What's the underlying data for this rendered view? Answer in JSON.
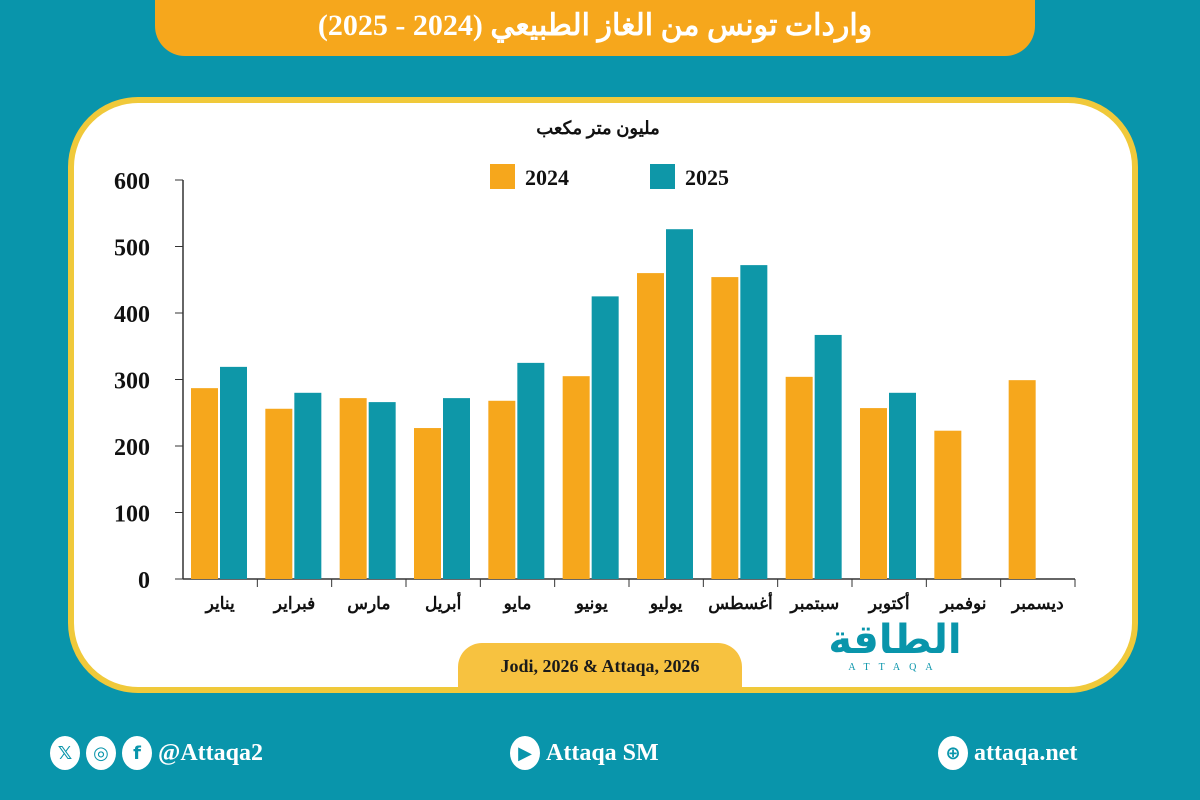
{
  "header": {
    "title": "واردات تونس من الغاز الطبيعي (2024 - 2025)"
  },
  "chart_data": {
    "type": "bar",
    "title": "واردات تونس من الغاز الطبيعي (2024 - 2025)",
    "ylabel": "مليون متر مكعب",
    "ylim": [
      0,
      600
    ],
    "yticks": [
      "0",
      "100",
      "200",
      "300",
      "400",
      "500",
      "600"
    ],
    "categories": [
      "يناير",
      "فبراير",
      "مارس",
      "أبريل",
      "مايو",
      "يونيو",
      "يوليو",
      "أغسطس",
      "سبتمبر",
      "أكتوبر",
      "نوفمبر",
      "ديسمبر"
    ],
    "series": [
      {
        "name": "2024",
        "color": "#f6a71c",
        "values": [
          287,
          256,
          272,
          227,
          268,
          305,
          460,
          454,
          304,
          257,
          223,
          299
        ]
      },
      {
        "name": "2025",
        "color": "#0e97a8",
        "values": [
          319,
          280,
          266,
          272,
          325,
          425,
          526,
          472,
          367,
          280,
          null,
          null
        ]
      }
    ],
    "grid": false,
    "legend": "top-center"
  },
  "source": "Jodi, 2026 & Attaqa, 2026",
  "logo": {
    "ar": "الطاقة",
    "en": "ATTAQA"
  },
  "footer": {
    "social": "@Attaqa2",
    "youtube": "Attaqa SM",
    "web": "attaqa.net"
  },
  "colors": {
    "background": "#0995ab",
    "accent": "#f6a71c",
    "border": "#f0c93a"
  }
}
